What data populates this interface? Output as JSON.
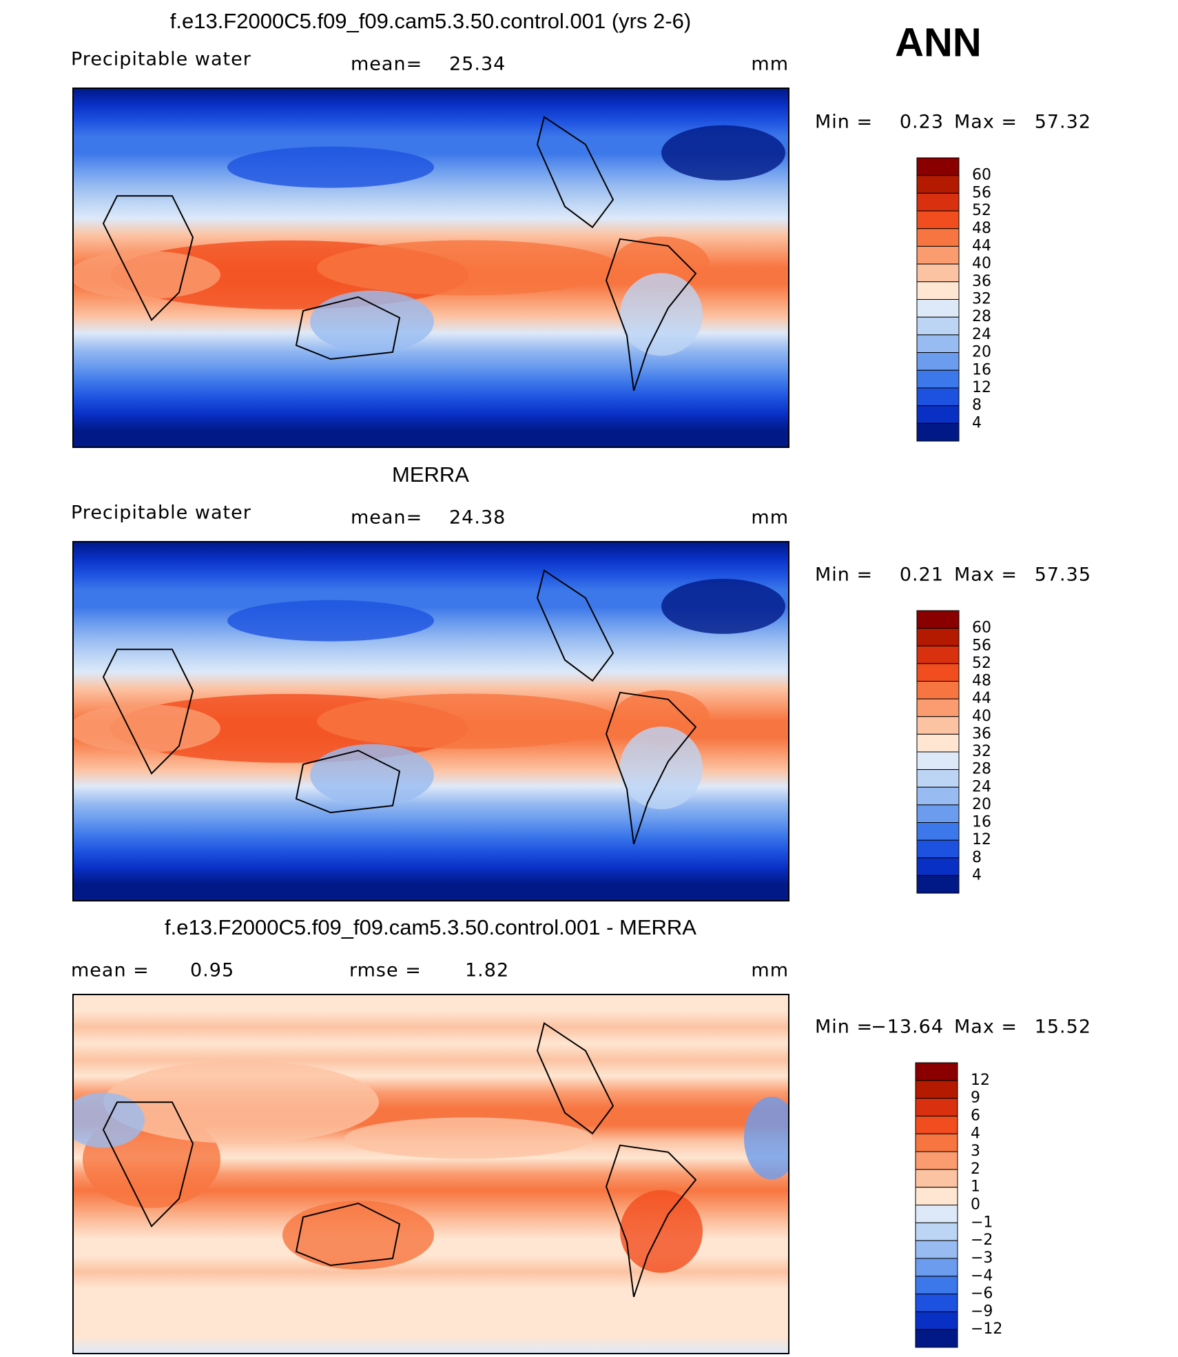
{
  "season": "ANN",
  "panels": [
    {
      "title": "f.e13.F2000C5.f09_f09.cam5.3.50.control.001 (yrs 2-6)",
      "variable": "Precipitable water",
      "mean_label": "mean=",
      "mean": "25.34",
      "units": "mm",
      "min_label": "Min =",
      "min": "0.23",
      "max_label": "Max =",
      "max": "57.32",
      "colorbar": {
        "labels": [
          "60",
          "56",
          "52",
          "48",
          "44",
          "40",
          "36",
          "32",
          "28",
          "24",
          "20",
          "16",
          "12",
          "8",
          "4"
        ],
        "colors": [
          "#8a0000",
          "#b31a00",
          "#d93010",
          "#f24d1e",
          "#f77540",
          "#fa9c70",
          "#fcc3a3",
          "#fee6d2",
          "#dde9f9",
          "#bdd5f5",
          "#98bbf1",
          "#6b9cee",
          "#3d78ea",
          "#1d52e0",
          "#0930c4",
          "#001987"
        ]
      }
    },
    {
      "title": "MERRA",
      "variable": "Precipitable water",
      "mean_label": "mean=",
      "mean": "24.38",
      "units": "mm",
      "min_label": "Min =",
      "min": "0.21",
      "max_label": "Max =",
      "max": "57.35",
      "colorbar": {
        "labels": [
          "60",
          "56",
          "52",
          "48",
          "44",
          "40",
          "36",
          "32",
          "28",
          "24",
          "20",
          "16",
          "12",
          "8",
          "4"
        ],
        "colors": [
          "#8a0000",
          "#b31a00",
          "#d93010",
          "#f24d1e",
          "#f77540",
          "#fa9c70",
          "#fcc3a3",
          "#fee6d2",
          "#dde9f9",
          "#bdd5f5",
          "#98bbf1",
          "#6b9cee",
          "#3d78ea",
          "#1d52e0",
          "#0930c4",
          "#001987"
        ]
      }
    },
    {
      "title": "f.e13.F2000C5.f09_f09.cam5.3.50.control.001 - MERRA",
      "mean_label": "mean =",
      "mean": "0.95",
      "rmse_label": "rmse =",
      "rmse": "1.82",
      "units": "mm",
      "min_label": "Min =",
      "min": "−13.64",
      "max_label": "Max =",
      "max": "15.52",
      "colorbar": {
        "labels": [
          "12",
          "9",
          "6",
          "4",
          "3",
          "2",
          "1",
          "0",
          "−1",
          "−2",
          "−3",
          "−4",
          "−6",
          "−9",
          "−12"
        ],
        "colors": [
          "#8a0000",
          "#b31a00",
          "#d93010",
          "#f24d1e",
          "#f77540",
          "#fa9c70",
          "#fcc3a3",
          "#fee6d2",
          "#dde9f9",
          "#bdd5f5",
          "#98bbf1",
          "#6b9cee",
          "#3d78ea",
          "#1d52e0",
          "#0930c4",
          "#001987"
        ]
      }
    }
  ]
}
